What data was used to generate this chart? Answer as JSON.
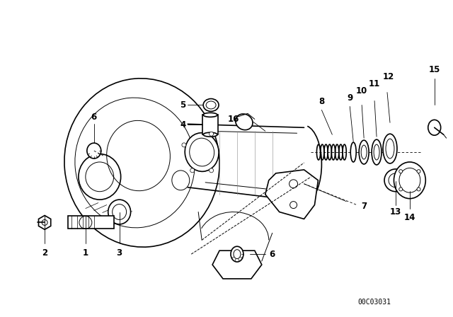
{
  "bg_color": "#ffffff",
  "fig_width": 6.4,
  "fig_height": 4.48,
  "dpi": 100,
  "watermark": "00C03031",
  "line_color": "#000000",
  "lw_main": 1.2,
  "lw_thin": 0.7,
  "lw_leader": 0.6,
  "label_fontsize": 8.5,
  "label_fontweight": "bold",
  "parts_5_label": "5",
  "parts_4_label": "4",
  "xlim": [
    0,
    640
  ],
  "ylim": [
    0,
    448
  ]
}
